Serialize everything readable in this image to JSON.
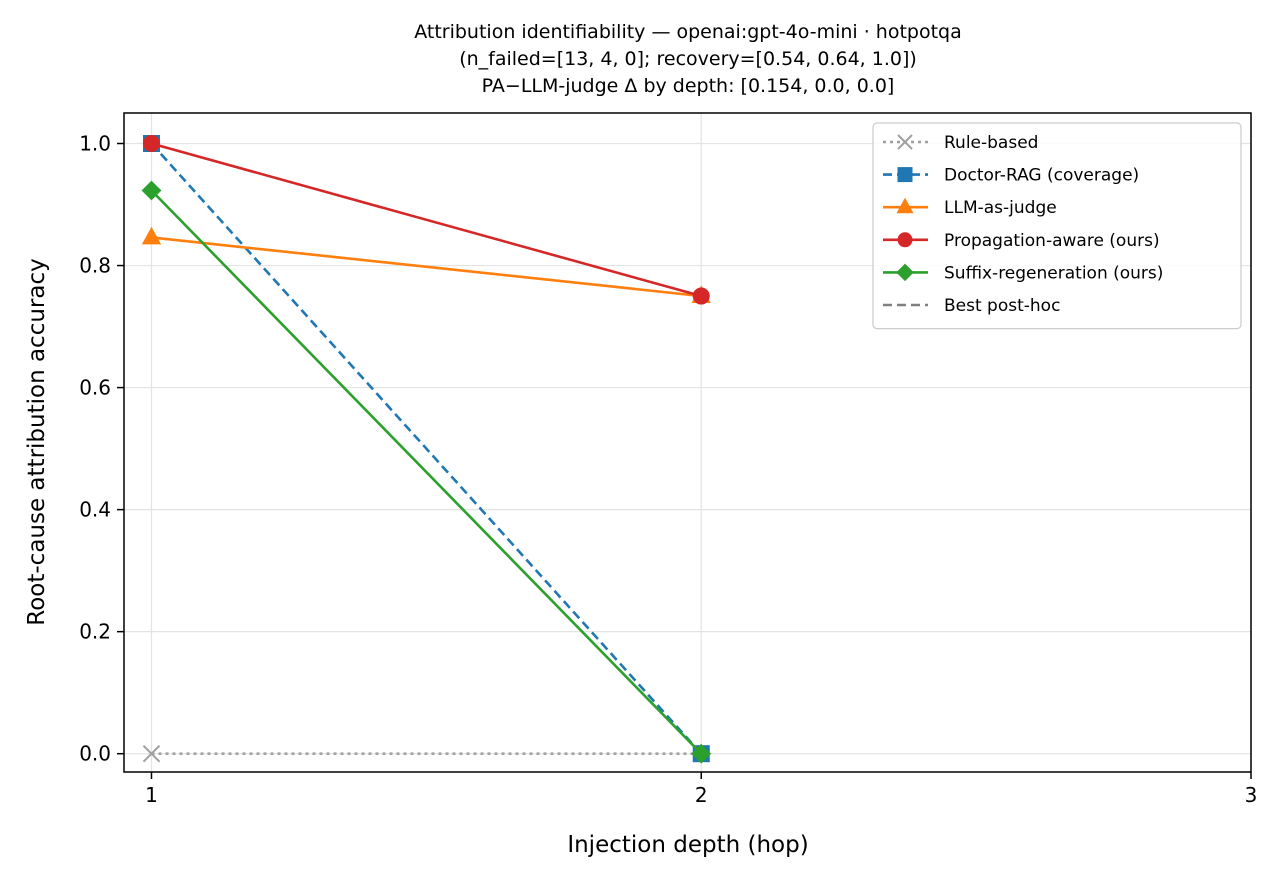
{
  "chart_data": {
    "type": "line",
    "title_lines": [
      "Attribution identifiability — openai:gpt-4o-mini · hotpotqa",
      "(n_failed=[13, 4, 0]; recovery=[0.54, 0.64, 1.0])",
      "PA−LLM-judge Δ by depth: [0.154, 0.0, 0.0]"
    ],
    "xlabel": "Injection depth (hop)",
    "ylabel": "Root-cause attribution accuracy",
    "x_ticks": [
      1,
      2,
      3
    ],
    "y_ticks": [
      0.0,
      0.2,
      0.4,
      0.6,
      0.8,
      1.0
    ],
    "xlim": [
      0.95,
      3.0
    ],
    "ylim": [
      -0.03,
      1.05
    ],
    "grid": true,
    "legend_position": "upper-right",
    "series": [
      {
        "name": "Rule-based",
        "x": [
          1,
          2
        ],
        "y": [
          0.0,
          0.0
        ],
        "color": "#a0a0a0",
        "dash": "dotted",
        "marker": "x"
      },
      {
        "name": "Doctor-RAG (coverage)",
        "x": [
          1,
          2
        ],
        "y": [
          1.0,
          0.0
        ],
        "color": "#1f77b4",
        "dash": "dashed",
        "marker": "square"
      },
      {
        "name": "LLM-as-judge",
        "x": [
          1,
          2
        ],
        "y": [
          0.846,
          0.75
        ],
        "color": "#ff7f0e",
        "dash": "solid",
        "marker": "triangle"
      },
      {
        "name": "Propagation-aware (ours)",
        "x": [
          1,
          2
        ],
        "y": [
          1.0,
          0.75
        ],
        "color": "#d62728",
        "dash": "solid",
        "marker": "circle"
      },
      {
        "name": "Suffix-regeneration (ours)",
        "x": [
          1,
          2
        ],
        "y": [
          0.923,
          0.0
        ],
        "color": "#2ca02c",
        "dash": "solid",
        "marker": "diamond"
      },
      {
        "name": "Best post-hoc",
        "x": [],
        "y": [],
        "color": "#808080",
        "dash": "dashed",
        "marker": "none"
      }
    ]
  }
}
